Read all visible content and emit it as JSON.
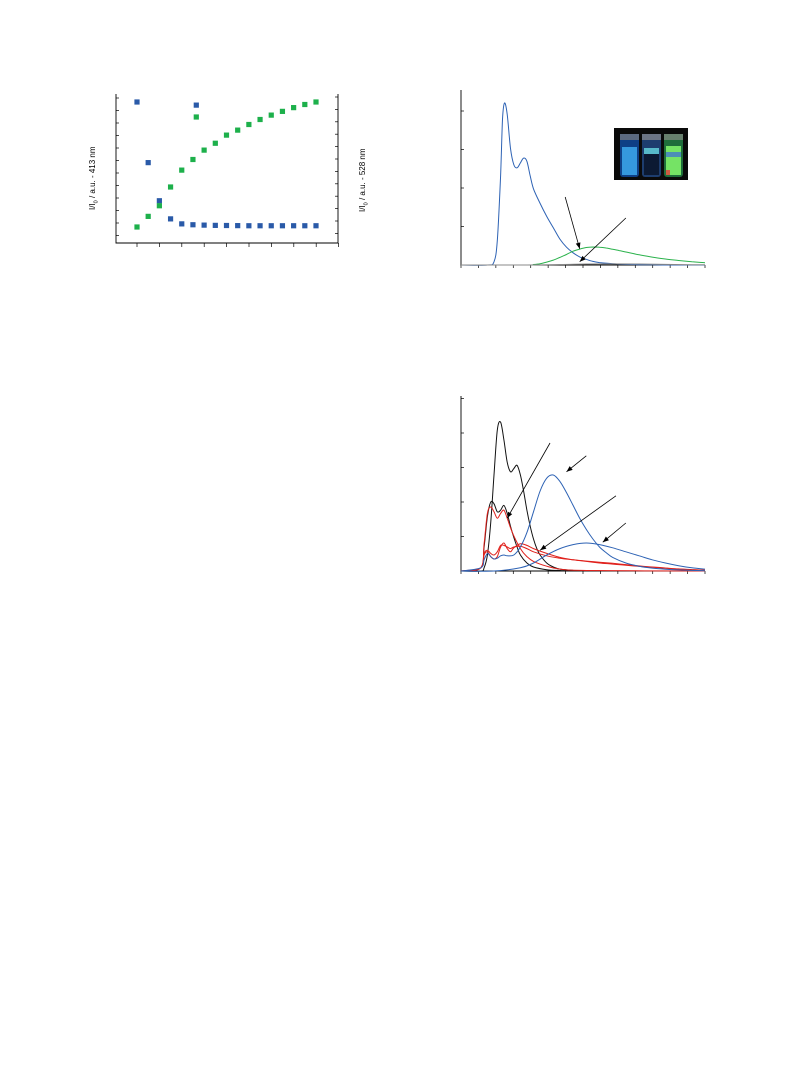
{
  "colors": {
    "blue_marker": "#2a5aa8",
    "green_marker": "#1db04b",
    "blue_line": "#2d62b4",
    "green_line": "#2bb24c",
    "black_line": "#111111",
    "red_line": "#e0201b",
    "photo_bg": "#0a0a0a",
    "vial_blue": "#3aa2e8",
    "vial_cyan": "#66d8e0",
    "vial_green": "#7ef06a"
  },
  "chart_data": [
    {
      "id": "scatter-left",
      "type": "scatter",
      "title": "",
      "y1label_main": "I/I",
      "y1label_sub": "0",
      "y1label_rest": " / a.u. - 413 nm",
      "y2label_main": "I/I",
      "y2label_sub": "0",
      "y2label_rest": " / a.u. - 528 nm",
      "xlim": [
        0,
        18
      ],
      "y1lim": [
        0,
        1.05
      ],
      "y2lim": [
        0,
        1.05
      ],
      "series": [
        {
          "color": "blue",
          "axis": "left",
          "x": [
            0,
            1,
            2,
            3,
            4,
            5,
            6,
            7,
            8,
            9,
            10,
            11,
            12,
            13,
            14,
            15,
            16,
            5.3
          ],
          "y": [
            1.0,
            0.515,
            0.21,
            0.065,
            0.025,
            0.018,
            0.015,
            0.013,
            0.012,
            0.011,
            0.01,
            0.01,
            0.01,
            0.01,
            0.01,
            0.01,
            0.01,
            0.975
          ]
        },
        {
          "color": "green",
          "axis": "right",
          "x": [
            0,
            1,
            2,
            3,
            4,
            5,
            6,
            7,
            8,
            9,
            10,
            11,
            12,
            13,
            14,
            15,
            16,
            5.3
          ],
          "y": [
            0.0,
            0.085,
            0.17,
            0.32,
            0.455,
            0.54,
            0.615,
            0.67,
            0.735,
            0.775,
            0.82,
            0.86,
            0.895,
            0.925,
            0.955,
            0.98,
            1.0,
            0.88
          ]
        }
      ]
    },
    {
      "id": "spectrum-top-right",
      "type": "line",
      "title": "",
      "xlim": [
        350,
        720
      ],
      "ylim": [
        0,
        1.05
      ],
      "series": [
        {
          "color": "blue",
          "x": [
            350,
            390,
            400,
            405,
            410,
            413,
            416,
            420,
            425,
            430,
            435,
            440,
            445,
            450,
            455,
            460,
            470,
            480,
            490,
            500,
            510,
            520,
            530,
            540,
            550,
            560,
            580,
            600,
            620,
            640,
            660,
            680,
            700,
            720
          ],
          "y": [
            0,
            0.0,
            0.02,
            0.15,
            0.55,
            0.9,
            1.0,
            0.93,
            0.72,
            0.62,
            0.6,
            0.63,
            0.66,
            0.64,
            0.55,
            0.47,
            0.38,
            0.3,
            0.23,
            0.16,
            0.11,
            0.075,
            0.05,
            0.035,
            0.022,
            0.015,
            0.008,
            0.004,
            0.002,
            0.001,
            0,
            0,
            0,
            0
          ]
        },
        {
          "color": "green",
          "x": [
            350,
            450,
            460,
            470,
            480,
            490,
            500,
            510,
            520,
            530,
            540,
            550,
            560,
            570,
            580,
            590,
            600,
            620,
            640,
            660,
            680,
            700,
            720
          ],
          "y": [
            0,
            0.0,
            0.003,
            0.008,
            0.018,
            0.03,
            0.047,
            0.065,
            0.085,
            0.098,
            0.108,
            0.111,
            0.11,
            0.105,
            0.097,
            0.089,
            0.08,
            0.063,
            0.049,
            0.037,
            0.028,
            0.02,
            0.014
          ]
        },
        {
          "color": "gray",
          "x": [
            350,
            450,
            500,
            540,
            580,
            620,
            660,
            700,
            720
          ],
          "y": [
            0,
            0,
            0.003,
            0.006,
            0.007,
            0.006,
            0.004,
            0.002,
            0.001
          ]
        }
      ],
      "annotations": [
        {
          "type": "arrow",
          "from": [
            508,
            0.42
          ],
          "to": [
            530,
            0.1
          ]
        },
        {
          "type": "arrow",
          "from": [
            600,
            0.29
          ],
          "to": [
            530,
            0.02
          ]
        }
      ]
    },
    {
      "id": "spectrum-bottom-right",
      "type": "line",
      "title": "",
      "xlim": [
        350,
        720
      ],
      "ylim": [
        0,
        1.05
      ],
      "series": [
        {
          "color": "black",
          "x": [
            350,
            380,
            385,
            390,
            395,
            400,
            405,
            410,
            415,
            420,
            425,
            430,
            435,
            440,
            445,
            450,
            455,
            460,
            465,
            470,
            480,
            490,
            500,
            520,
            540,
            560,
            600,
            720
          ],
          "y": [
            0,
            0,
            0.02,
            0.1,
            0.3,
            0.6,
            0.88,
            0.93,
            0.82,
            0.68,
            0.62,
            0.64,
            0.66,
            0.6,
            0.5,
            0.38,
            0.28,
            0.2,
            0.14,
            0.1,
            0.05,
            0.025,
            0.012,
            0.004,
            0.002,
            0.001,
            0,
            0
          ]
        },
        {
          "color": "black",
          "x": [
            350,
            380,
            385,
            390,
            395,
            400,
            405,
            410,
            415,
            420,
            425,
            430,
            435,
            440,
            450,
            460,
            480,
            500,
            540,
            720
          ],
          "y": [
            0,
            0.02,
            0.15,
            0.34,
            0.43,
            0.42,
            0.37,
            0.38,
            0.41,
            0.36,
            0.28,
            0.21,
            0.15,
            0.1,
            0.05,
            0.025,
            0.008,
            0.003,
            0,
            0
          ]
        },
        {
          "color": "red",
          "x": [
            350,
            380,
            385,
            390,
            395,
            400,
            405,
            410,
            415,
            420,
            425,
            430,
            440,
            450,
            460,
            480,
            500,
            540,
            720
          ],
          "y": [
            0,
            0.02,
            0.17,
            0.36,
            0.4,
            0.37,
            0.33,
            0.36,
            0.38,
            0.33,
            0.27,
            0.22,
            0.14,
            0.09,
            0.06,
            0.03,
            0.012,
            0.003,
            0
          ]
        },
        {
          "color": "red",
          "x": [
            350,
            380,
            385,
            390,
            395,
            400,
            405,
            410,
            415,
            420,
            425,
            430,
            440,
            450,
            460,
            480,
            500,
            520,
            540,
            560,
            580,
            600,
            620,
            640,
            660,
            680,
            700,
            720
          ],
          "y": [
            0,
            0.02,
            0.1,
            0.12,
            0.09,
            0.075,
            0.09,
            0.15,
            0.175,
            0.14,
            0.12,
            0.145,
            0.17,
            0.16,
            0.14,
            0.11,
            0.085,
            0.07,
            0.06,
            0.05,
            0.043,
            0.036,
            0.029,
            0.023,
            0.017,
            0.012,
            0.008,
            0.005
          ]
        },
        {
          "color": "red",
          "x": [
            350,
            380,
            385,
            390,
            395,
            400,
            405,
            410,
            415,
            420,
            425,
            430,
            440,
            450,
            460,
            480,
            500,
            520,
            540,
            560,
            580,
            600,
            620,
            640,
            660,
            680,
            700,
            720
          ],
          "y": [
            0,
            0.02,
            0.11,
            0.13,
            0.11,
            0.1,
            0.12,
            0.16,
            0.16,
            0.15,
            0.14,
            0.15,
            0.155,
            0.14,
            0.12,
            0.095,
            0.08,
            0.07,
            0.062,
            0.055,
            0.048,
            0.04,
            0.032,
            0.025,
            0.019,
            0.013,
            0.009,
            0.005
          ]
        },
        {
          "color": "blue",
          "x": [
            350,
            380,
            385,
            390,
            395,
            400,
            405,
            410,
            415,
            420,
            430,
            440,
            450,
            460,
            470,
            480,
            490,
            500,
            510,
            520,
            530,
            540,
            550,
            560,
            570,
            580,
            600,
            620,
            640,
            660,
            680,
            700,
            720
          ],
          "y": [
            0,
            0.02,
            0.07,
            0.11,
            0.09,
            0.075,
            0.08,
            0.095,
            0.1,
            0.095,
            0.1,
            0.15,
            0.24,
            0.37,
            0.5,
            0.58,
            0.6,
            0.56,
            0.49,
            0.41,
            0.33,
            0.26,
            0.2,
            0.15,
            0.115,
            0.085,
            0.05,
            0.03,
            0.018,
            0.011,
            0.007,
            0.004,
            0.002
          ]
        },
        {
          "color": "blue",
          "x": [
            350,
            400,
            440,
            460,
            480,
            500,
            520,
            540,
            560,
            580,
            600,
            620,
            640,
            660,
            680,
            700,
            720
          ],
          "y": [
            0,
            0,
            0.02,
            0.05,
            0.1,
            0.14,
            0.165,
            0.175,
            0.165,
            0.145,
            0.12,
            0.095,
            0.07,
            0.05,
            0.033,
            0.02,
            0.012
          ]
        }
      ],
      "annotations": [
        {
          "type": "arrow",
          "from": [
            485,
            0.8
          ],
          "to": [
            420,
            0.33
          ]
        },
        {
          "type": "arrow",
          "from": [
            540,
            0.72
          ],
          "to": [
            510,
            0.62
          ]
        },
        {
          "type": "arrow",
          "from": [
            585,
            0.47
          ],
          "to": [
            470,
            0.13
          ]
        },
        {
          "type": "arrow",
          "from": [
            600,
            0.3
          ],
          "to": [
            565,
            0.18
          ]
        }
      ]
    }
  ]
}
